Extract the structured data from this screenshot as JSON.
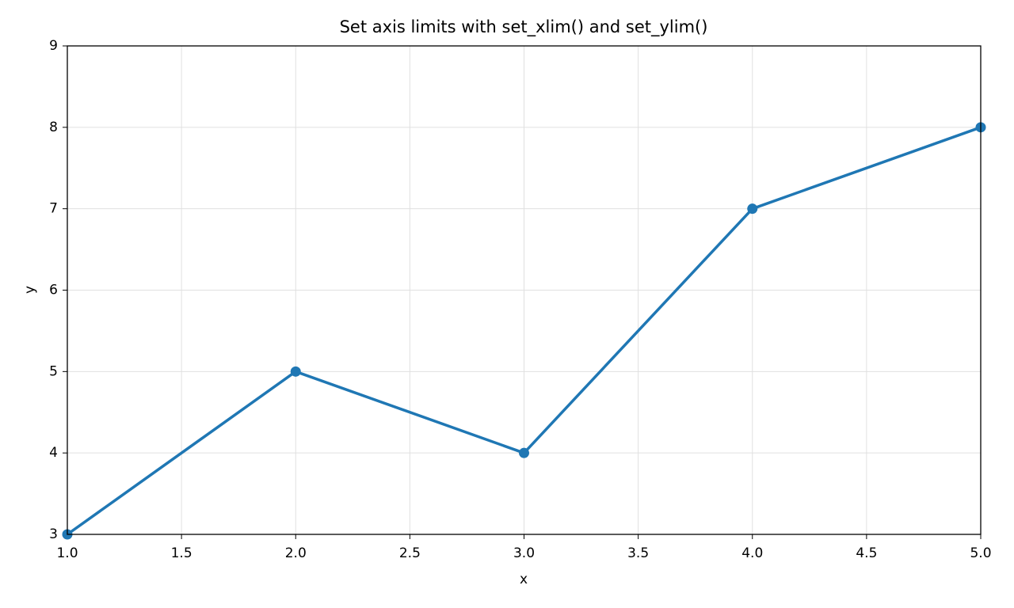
{
  "chart_data": {
    "type": "line",
    "title": "Set axis limits with set_xlim() and set_ylim()",
    "x_label": "x",
    "y_label": "y",
    "x": [
      1,
      2,
      3,
      4,
      5
    ],
    "values": [
      3,
      5,
      4,
      7,
      8
    ],
    "color": "#1f77b4",
    "xlim": [
      1,
      5
    ],
    "ylim": [
      3,
      9
    ],
    "xticks": [
      {
        "value": 1,
        "label": "1.0"
      },
      1.5,
      {
        "value": 2,
        "label": "2.0"
      },
      2.5,
      {
        "value": 3,
        "label": "3.0"
      },
      3.5,
      {
        "value": 4,
        "label": "4.0"
      },
      4.5,
      {
        "value": 5,
        "label": "5.0"
      }
    ],
    "yticks": [
      3,
      4,
      5,
      6,
      7,
      8,
      9
    ],
    "grid": true,
    "markers": true
  }
}
